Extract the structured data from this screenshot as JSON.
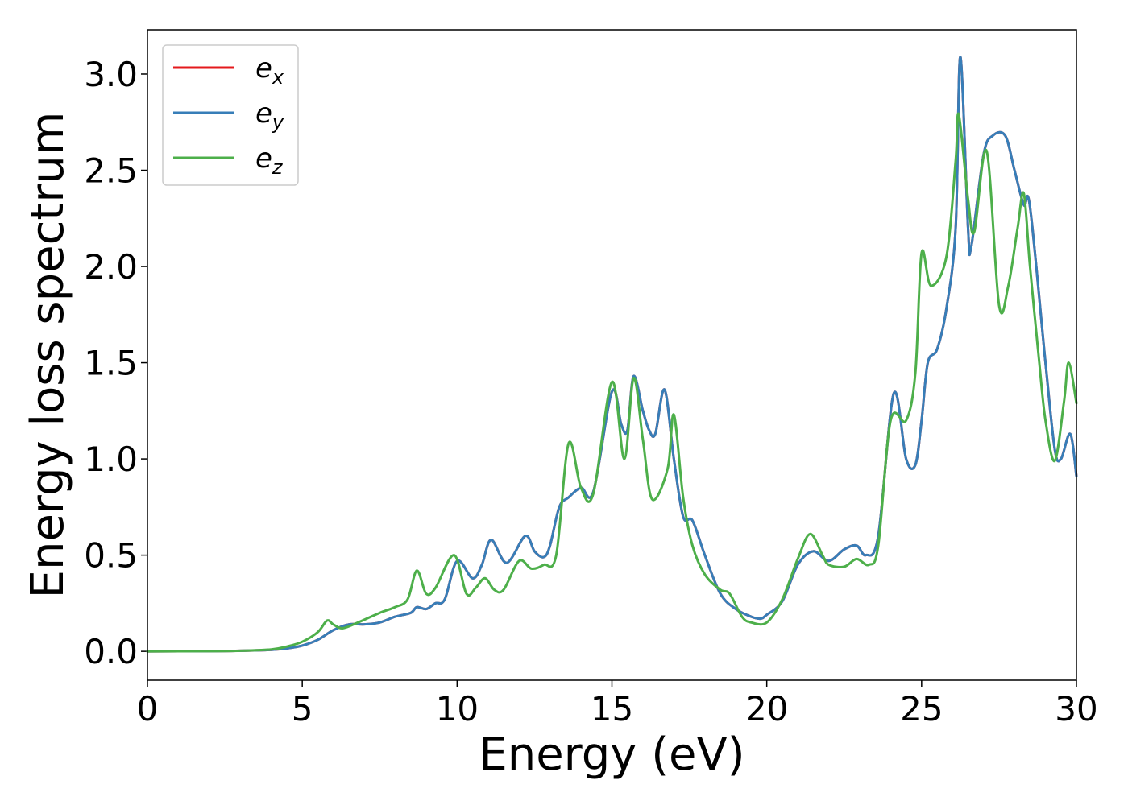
{
  "chart_data": {
    "type": "line",
    "title": "",
    "xlabel": "Energy (eV)",
    "ylabel": "Energy loss spectrum",
    "xlim": [
      0,
      30
    ],
    "ylim": [
      -0.15,
      3.23
    ],
    "xticks": [
      0,
      5,
      10,
      15,
      20,
      25,
      30
    ],
    "xtick_labels": [
      "0",
      "5",
      "10",
      "15",
      "20",
      "25",
      "30"
    ],
    "yticks": [
      0.0,
      0.5,
      1.0,
      1.5,
      2.0,
      2.5,
      3.0
    ],
    "ytick_labels": [
      "0.0",
      "0.5",
      "1.0",
      "1.5",
      "2.0",
      "2.5",
      "3.0"
    ],
    "grid": false,
    "legend_position": "top-left",
    "series": [
      {
        "name": "e_x",
        "legend_main": "e",
        "legend_sub": "x",
        "color": "#e41a1c",
        "points": [
          [
            0,
            0
          ],
          [
            2,
            0.001
          ],
          [
            3,
            0.003
          ],
          [
            4,
            0.008
          ],
          [
            4.5,
            0.015
          ],
          [
            5,
            0.03
          ],
          [
            5.5,
            0.06
          ],
          [
            6,
            0.11
          ],
          [
            6.5,
            0.14
          ],
          [
            7,
            0.14
          ],
          [
            7.5,
            0.15
          ],
          [
            8,
            0.18
          ],
          [
            8.5,
            0.2
          ],
          [
            8.7,
            0.23
          ],
          [
            9,
            0.22
          ],
          [
            9.3,
            0.25
          ],
          [
            9.6,
            0.27
          ],
          [
            10,
            0.47
          ],
          [
            10.5,
            0.38
          ],
          [
            10.8,
            0.45
          ],
          [
            11.1,
            0.58
          ],
          [
            11.6,
            0.46
          ],
          [
            12.2,
            0.6
          ],
          [
            12.5,
            0.52
          ],
          [
            12.8,
            0.49
          ],
          [
            13,
            0.55
          ],
          [
            13.3,
            0.75
          ],
          [
            13.6,
            0.8
          ],
          [
            14,
            0.85
          ],
          [
            14.4,
            0.83
          ],
          [
            15,
            1.35
          ],
          [
            15.3,
            1.18
          ],
          [
            15.5,
            1.15
          ],
          [
            15.7,
            1.43
          ],
          [
            16,
            1.25
          ],
          [
            16.2,
            1.15
          ],
          [
            16.4,
            1.13
          ],
          [
            16.7,
            1.36
          ],
          [
            17,
            1.0
          ],
          [
            17.3,
            0.7
          ],
          [
            17.6,
            0.68
          ],
          [
            18,
            0.5
          ],
          [
            18.5,
            0.3
          ],
          [
            19,
            0.22
          ],
          [
            19.5,
            0.18
          ],
          [
            19.8,
            0.17
          ],
          [
            20,
            0.19
          ],
          [
            20.5,
            0.26
          ],
          [
            21,
            0.45
          ],
          [
            21.5,
            0.52
          ],
          [
            22,
            0.47
          ],
          [
            22.5,
            0.53
          ],
          [
            22.9,
            0.55
          ],
          [
            23.2,
            0.5
          ],
          [
            23.6,
            0.6
          ],
          [
            24.1,
            1.34
          ],
          [
            24.5,
            1.0
          ],
          [
            24.8,
            0.97
          ],
          [
            25,
            1.2
          ],
          [
            25.2,
            1.5
          ],
          [
            25.5,
            1.57
          ],
          [
            25.8,
            1.78
          ],
          [
            26.1,
            2.2
          ],
          [
            26.25,
            3.09
          ],
          [
            26.5,
            2.2
          ],
          [
            26.6,
            2.1
          ],
          [
            27,
            2.58
          ],
          [
            27.3,
            2.68
          ],
          [
            27.7,
            2.68
          ],
          [
            28,
            2.5
          ],
          [
            28.3,
            2.32
          ],
          [
            28.5,
            2.31
          ],
          [
            29,
            1.5
          ],
          [
            29.3,
            1.05
          ],
          [
            29.5,
            1.0
          ],
          [
            29.8,
            1.13
          ],
          [
            30,
            0.91
          ]
        ]
      },
      {
        "name": "e_y",
        "legend_main": "e",
        "legend_sub": "y",
        "color": "#377eb8",
        "points": [
          [
            0,
            0
          ],
          [
            2,
            0.001
          ],
          [
            3,
            0.003
          ],
          [
            4,
            0.008
          ],
          [
            4.5,
            0.015
          ],
          [
            5,
            0.03
          ],
          [
            5.5,
            0.06
          ],
          [
            6,
            0.11
          ],
          [
            6.5,
            0.14
          ],
          [
            7,
            0.14
          ],
          [
            7.5,
            0.15
          ],
          [
            8,
            0.18
          ],
          [
            8.5,
            0.2
          ],
          [
            8.7,
            0.23
          ],
          [
            9,
            0.22
          ],
          [
            9.3,
            0.25
          ],
          [
            9.6,
            0.27
          ],
          [
            10,
            0.47
          ],
          [
            10.5,
            0.38
          ],
          [
            10.8,
            0.45
          ],
          [
            11.1,
            0.58
          ],
          [
            11.6,
            0.46
          ],
          [
            12.2,
            0.6
          ],
          [
            12.5,
            0.52
          ],
          [
            12.8,
            0.49
          ],
          [
            13,
            0.55
          ],
          [
            13.3,
            0.75
          ],
          [
            13.6,
            0.8
          ],
          [
            14,
            0.85
          ],
          [
            14.4,
            0.83
          ],
          [
            15,
            1.35
          ],
          [
            15.3,
            1.18
          ],
          [
            15.5,
            1.15
          ],
          [
            15.7,
            1.43
          ],
          [
            16,
            1.25
          ],
          [
            16.2,
            1.15
          ],
          [
            16.4,
            1.13
          ],
          [
            16.7,
            1.36
          ],
          [
            17,
            1.0
          ],
          [
            17.3,
            0.7
          ],
          [
            17.6,
            0.68
          ],
          [
            18,
            0.5
          ],
          [
            18.5,
            0.3
          ],
          [
            19,
            0.22
          ],
          [
            19.5,
            0.18
          ],
          [
            19.8,
            0.17
          ],
          [
            20,
            0.19
          ],
          [
            20.5,
            0.26
          ],
          [
            21,
            0.45
          ],
          [
            21.5,
            0.52
          ],
          [
            22,
            0.47
          ],
          [
            22.5,
            0.53
          ],
          [
            22.9,
            0.55
          ],
          [
            23.2,
            0.5
          ],
          [
            23.6,
            0.6
          ],
          [
            24.1,
            1.34
          ],
          [
            24.5,
            1.0
          ],
          [
            24.8,
            0.97
          ],
          [
            25,
            1.2
          ],
          [
            25.2,
            1.5
          ],
          [
            25.5,
            1.57
          ],
          [
            25.8,
            1.78
          ],
          [
            26.1,
            2.2
          ],
          [
            26.25,
            3.09
          ],
          [
            26.5,
            2.2
          ],
          [
            26.6,
            2.1
          ],
          [
            27,
            2.58
          ],
          [
            27.3,
            2.68
          ],
          [
            27.7,
            2.68
          ],
          [
            28,
            2.5
          ],
          [
            28.3,
            2.32
          ],
          [
            28.5,
            2.31
          ],
          [
            29,
            1.5
          ],
          [
            29.3,
            1.05
          ],
          [
            29.5,
            1.0
          ],
          [
            29.8,
            1.13
          ],
          [
            30,
            0.91
          ]
        ]
      },
      {
        "name": "e_z",
        "legend_main": "e",
        "legend_sub": "z",
        "color": "#4daf4a",
        "points": [
          [
            0,
            0
          ],
          [
            2,
            0.001
          ],
          [
            3,
            0.003
          ],
          [
            4,
            0.01
          ],
          [
            4.5,
            0.025
          ],
          [
            5,
            0.05
          ],
          [
            5.5,
            0.1
          ],
          [
            5.8,
            0.16
          ],
          [
            6,
            0.14
          ],
          [
            6.3,
            0.12
          ],
          [
            6.8,
            0.15
          ],
          [
            7.5,
            0.2
          ],
          [
            8,
            0.23
          ],
          [
            8.4,
            0.27
          ],
          [
            8.7,
            0.42
          ],
          [
            9,
            0.3
          ],
          [
            9.3,
            0.33
          ],
          [
            9.9,
            0.5
          ],
          [
            10.3,
            0.3
          ],
          [
            10.6,
            0.33
          ],
          [
            10.9,
            0.38
          ],
          [
            11.2,
            0.32
          ],
          [
            11.5,
            0.32
          ],
          [
            12,
            0.47
          ],
          [
            12.4,
            0.43
          ],
          [
            12.8,
            0.45
          ],
          [
            13.2,
            0.5
          ],
          [
            13.6,
            1.08
          ],
          [
            14,
            0.85
          ],
          [
            14.4,
            0.82
          ],
          [
            15,
            1.4
          ],
          [
            15.4,
            1.0
          ],
          [
            15.7,
            1.42
          ],
          [
            16,
            1.1
          ],
          [
            16.3,
            0.79
          ],
          [
            16.8,
            0.95
          ],
          [
            17,
            1.23
          ],
          [
            17.3,
            0.8
          ],
          [
            17.6,
            0.55
          ],
          [
            18,
            0.4
          ],
          [
            18.5,
            0.32
          ],
          [
            18.8,
            0.3
          ],
          [
            19.2,
            0.18
          ],
          [
            19.5,
            0.15
          ],
          [
            20,
            0.15
          ],
          [
            20.5,
            0.27
          ],
          [
            21,
            0.48
          ],
          [
            21.4,
            0.61
          ],
          [
            21.8,
            0.5
          ],
          [
            22,
            0.45
          ],
          [
            22.5,
            0.44
          ],
          [
            22.9,
            0.48
          ],
          [
            23.3,
            0.45
          ],
          [
            23.6,
            0.55
          ],
          [
            24,
            1.2
          ],
          [
            24.5,
            1.2
          ],
          [
            24.8,
            1.45
          ],
          [
            25,
            2.07
          ],
          [
            25.3,
            1.9
          ],
          [
            25.8,
            2.05
          ],
          [
            26.1,
            2.55
          ],
          [
            26.2,
            2.79
          ],
          [
            26.5,
            2.35
          ],
          [
            26.7,
            2.18
          ],
          [
            27.1,
            2.6
          ],
          [
            27.5,
            1.8
          ],
          [
            27.8,
            1.9
          ],
          [
            28.1,
            2.2
          ],
          [
            28.3,
            2.38
          ],
          [
            28.5,
            2.0
          ],
          [
            28.8,
            1.5
          ],
          [
            29,
            1.2
          ],
          [
            29.3,
            0.99
          ],
          [
            29.6,
            1.3
          ],
          [
            29.75,
            1.5
          ],
          [
            30,
            1.29
          ]
        ]
      }
    ]
  }
}
